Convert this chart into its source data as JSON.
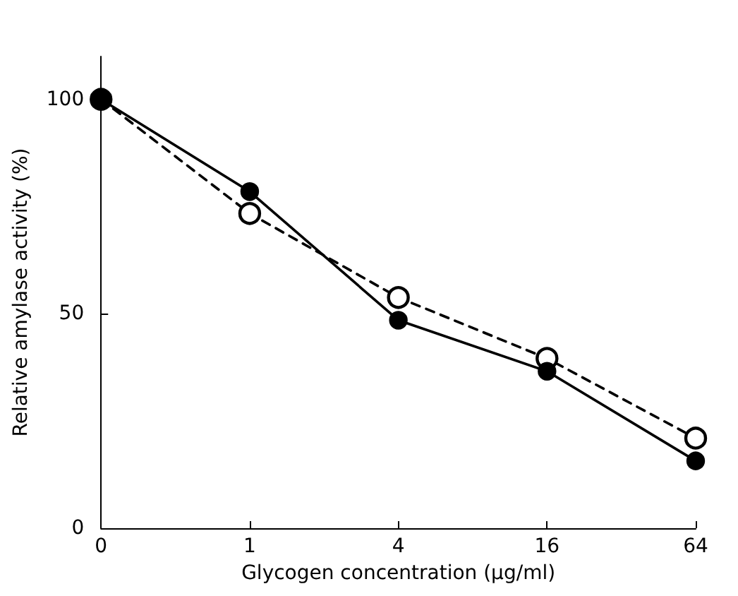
{
  "chart_data": {
    "type": "line",
    "xlabel": "Glycogen concentration (μg/ml)",
    "ylabel": "Relative amylase activity (%)",
    "categories": [
      "0",
      "1",
      "4",
      "16",
      "64"
    ],
    "series": [
      {
        "color": "#000000",
        "values": [
          100,
          78.5,
          48.5,
          36.6,
          15.7
        ],
        "line_style": "solid"
      },
      {
        "color": "#000000",
        "values": [
          100,
          73.4,
          53.8,
          39.6,
          21
        ],
        "line_style": "dashed"
      }
    ],
    "ylim": [
      0,
      110
    ],
    "yticks": [
      0,
      50,
      100
    ],
    "grid": false,
    "marker": "circle"
  }
}
